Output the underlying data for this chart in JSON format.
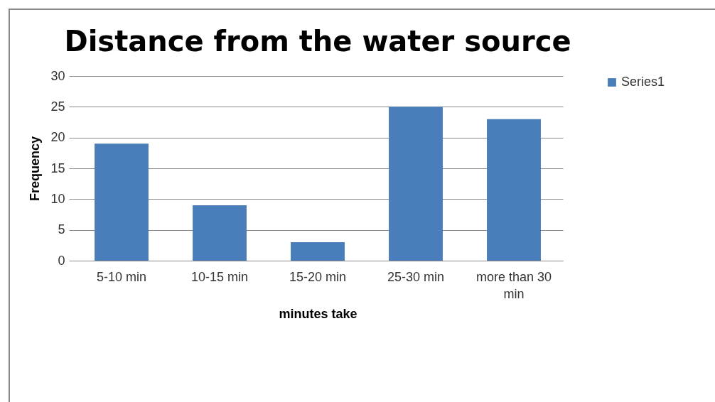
{
  "chart_data": {
    "type": "bar",
    "title": "Distance from the water source",
    "xlabel": "minutes take",
    "ylabel": "Frequency",
    "categories": [
      "5-10 min",
      "10-15 min",
      "15-20 min",
      "25-30 min",
      "more than 30 min"
    ],
    "series": [
      {
        "name": "Series1",
        "color": "#4a7ebb",
        "values": [
          19,
          9,
          3,
          25,
          23
        ]
      }
    ],
    "ylim": [
      0,
      30
    ],
    "yticks": [
      0,
      5,
      10,
      15,
      20,
      25,
      30
    ],
    "grid": "y",
    "legend": "right"
  }
}
